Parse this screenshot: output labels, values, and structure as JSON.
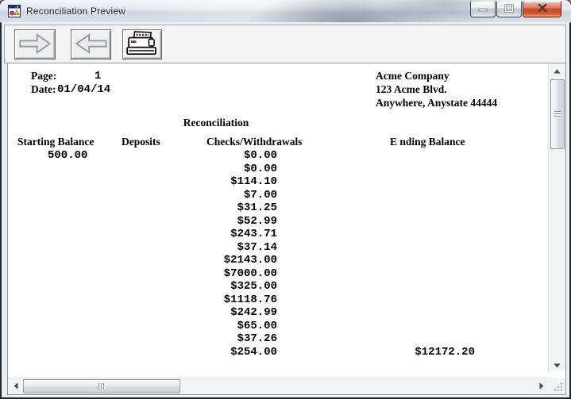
{
  "window": {
    "title": "Reconciliation Preview",
    "app_icon": "report-window-icon",
    "controls": [
      {
        "name": "minimize",
        "icon": "minimize-icon"
      },
      {
        "name": "maximize",
        "icon": "maximize-icon"
      },
      {
        "name": "close",
        "icon": "close-icon"
      }
    ],
    "close_button_color": "#c94c2b"
  },
  "toolbar": {
    "buttons": [
      {
        "name": "next-page",
        "icon": "arrow-right-icon"
      },
      {
        "name": "previous-page",
        "icon": "arrow-left-icon"
      },
      {
        "name": "print",
        "icon": "printer-icon"
      }
    ]
  },
  "report": {
    "page_label": "Page:",
    "page_number": "1",
    "date_label": "Date:",
    "date_value": "01/04/14",
    "company": {
      "name": "Acme Company",
      "address_line1": "123 Acme Blvd.",
      "address_line2": "Anywhere, Anystate 44444"
    },
    "title": "Reconciliation",
    "columns": [
      "Starting Balance",
      "Deposits",
      "Checks/Withdrawals",
      "E nding Balance"
    ],
    "starting_balance": "500.00",
    "checks_withdrawals": [
      "$0.00",
      "$0.00",
      "$114.10",
      "$7.00",
      "$31.25",
      "$52.99",
      "$243.71",
      "$37.14",
      "$2143.00",
      "$7000.00",
      "$325.00",
      "$1118.76",
      "$242.99",
      "$65.00",
      "$37.26",
      "$254.00"
    ],
    "ending_balance": "$12172.20"
  },
  "colors": {
    "text": "#000000",
    "printer_accent_red": "#a32c20",
    "printer_paper_blue": "#2a2a7a",
    "titlebar_text": "#15181b"
  }
}
